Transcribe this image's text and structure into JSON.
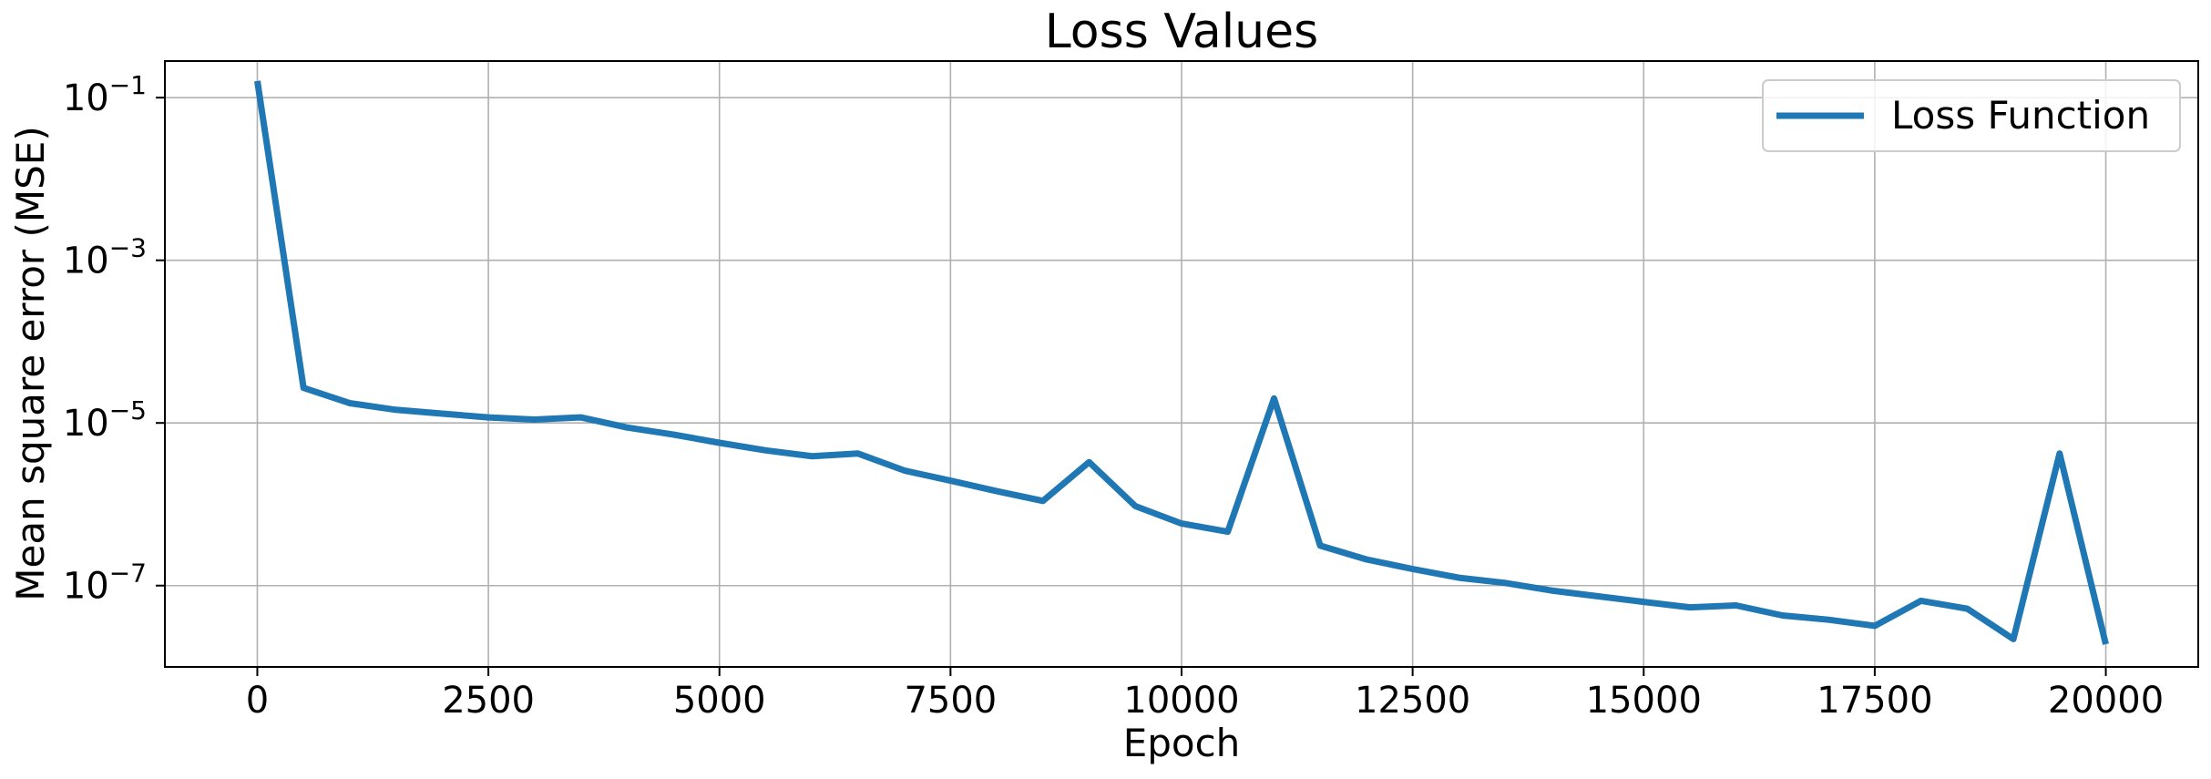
{
  "chart_data": {
    "type": "line",
    "title": "Loss Values",
    "xlabel": "Epoch",
    "ylabel": "Mean square error (MSE)",
    "y_scale": "log",
    "xlim": [
      -1000,
      21000
    ],
    "ylim_log10": [
      -8.0,
      -0.55
    ],
    "x_ticks": [
      0,
      2500,
      5000,
      7500,
      10000,
      12500,
      15000,
      17500,
      20000
    ],
    "x_tick_labels": [
      "0",
      "2500",
      "5000",
      "7500",
      "10000",
      "12500",
      "15000",
      "17500",
      "20000"
    ],
    "y_ticks_log10": [
      -1,
      -3,
      -5,
      -7
    ],
    "y_tick_labels": [
      {
        "base": "10",
        "exp": "−1"
      },
      {
        "base": "10",
        "exp": "−3"
      },
      {
        "base": "10",
        "exp": "−5"
      },
      {
        "base": "10",
        "exp": "−7"
      }
    ],
    "grid": true,
    "legend_position": "top-right",
    "series": [
      {
        "name": "Loss Function",
        "color": "#1f77b4",
        "x": [
          0,
          500,
          1000,
          1500,
          2000,
          2500,
          3000,
          3500,
          4000,
          4500,
          5000,
          5500,
          6000,
          6500,
          7000,
          7500,
          8000,
          8500,
          9000,
          9500,
          10000,
          10500,
          11000,
          11500,
          12000,
          12500,
          13000,
          13500,
          14000,
          14500,
          15000,
          15500,
          16000,
          16500,
          17000,
          17500,
          18000,
          18500,
          19000,
          19500,
          20000
        ],
        "y": [
          0.16,
          2.7e-05,
          1.75e-05,
          1.45e-05,
          1.3e-05,
          1.17e-05,
          1.1e-05,
          1.17e-05,
          8.8e-06,
          7.2e-06,
          5.7e-06,
          4.6e-06,
          3.9e-06,
          4.2e-06,
          2.6e-06,
          1.95e-06,
          1.45e-06,
          1.1e-06,
          3.3e-06,
          9.5e-07,
          5.8e-07,
          4.6e-07,
          2e-05,
          3.1e-07,
          2.1e-07,
          1.6e-07,
          1.25e-07,
          1.08e-07,
          8.7e-08,
          7.4e-08,
          6.3e-08,
          5.4e-08,
          5.7e-08,
          4.3e-08,
          3.8e-08,
          3.2e-08,
          6.5e-08,
          5.2e-08,
          2.2e-08,
          4.2e-06,
          1.9e-08
        ]
      }
    ]
  }
}
